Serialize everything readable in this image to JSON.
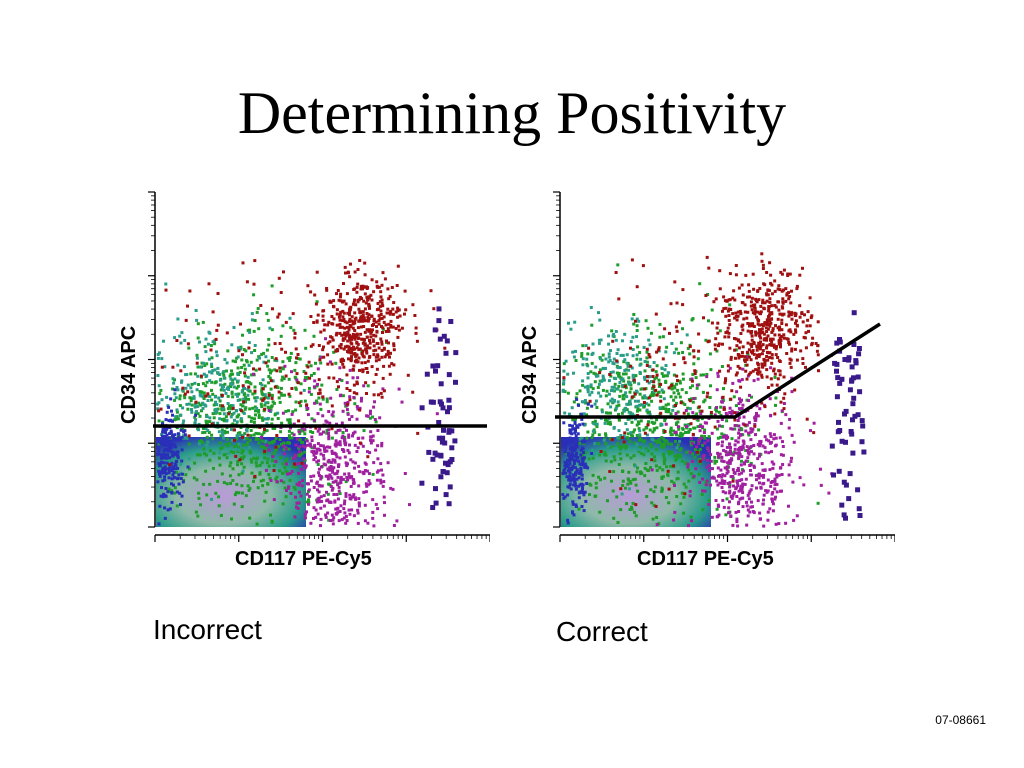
{
  "slide": {
    "title": "Determining Positivity",
    "code": "07-08661"
  },
  "panels": [
    {
      "x_axis_label": "CD117 PE-Cy5",
      "y_axis_label": "CD34 APC",
      "caption": "Incorrect",
      "gate": "horizontal"
    },
    {
      "x_axis_label": "CD117 PE-Cy5",
      "y_axis_label": "CD34 APC",
      "caption": "Correct",
      "gate": "angled"
    }
  ],
  "colors": {
    "blue": "#2a2fb8",
    "green": "#1f9d2a",
    "teal": "#2a9d8a",
    "red": "#a01010",
    "purple": "#a020a0",
    "violet": "#3a1a8a",
    "lavender": "#b99ad8",
    "gate_line": "#000000"
  }
}
